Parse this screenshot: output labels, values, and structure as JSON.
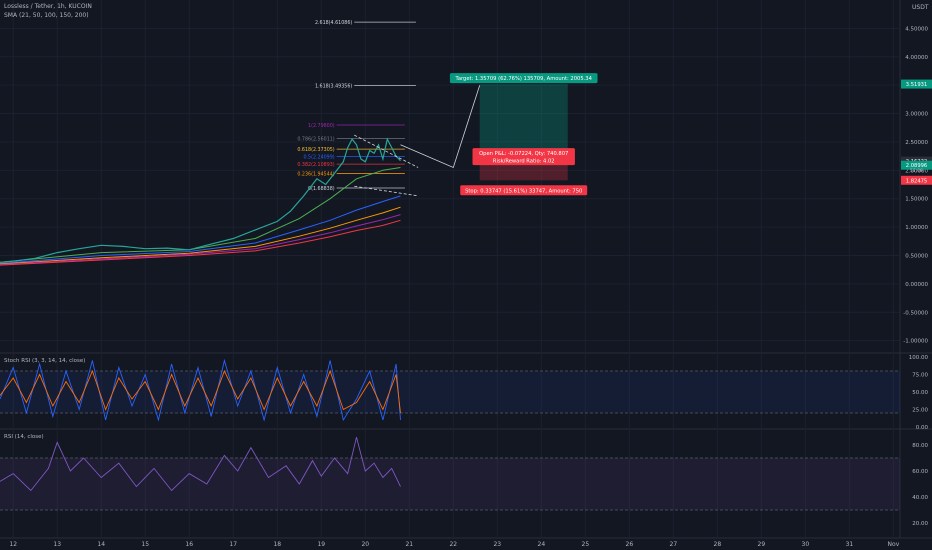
{
  "header": {
    "symbol": "Lossless / Tether, 1h, KUCOIN",
    "indicator": "SMA (21, 50, 100, 150, 200)",
    "currency": "USDT"
  },
  "chart_data": {
    "type": "line",
    "price_axis": {
      "ylim": [
        -1.2,
        5.0
      ],
      "ticks": [
        "-1.00000",
        "-0.50000",
        "0.00000",
        "0.50000",
        "1.00000",
        "1.50000",
        "2.00000",
        "2.50000",
        "3.00000",
        "3.50000",
        "4.00000",
        "4.50000"
      ],
      "tick_values": [
        -1.0,
        -0.5,
        0.0,
        0.5,
        1.0,
        1.5,
        2.0,
        2.5,
        3.0,
        3.5,
        4.0,
        4.5
      ]
    },
    "x_axis": {
      "ticks": [
        "12",
        "13",
        "14",
        "15",
        "16",
        "17",
        "18",
        "19",
        "20",
        "21",
        "22",
        "23",
        "24",
        "25",
        "26",
        "27",
        "28",
        "29",
        "30",
        "31",
        "Nov"
      ],
      "tick_values": [
        12,
        13,
        14,
        15,
        16,
        17,
        18,
        19,
        20,
        21,
        22,
        23,
        24,
        25,
        26,
        27,
        28,
        29,
        30,
        31,
        32
      ]
    },
    "price_series": {
      "x": [
        11.7,
        12.0,
        12.5,
        13.0,
        13.5,
        14.0,
        14.5,
        15.0,
        15.5,
        16.0,
        16.5,
        17.0,
        17.5,
        18.0,
        18.3,
        18.6,
        18.9,
        19.1,
        19.3,
        19.5,
        19.6,
        19.7,
        19.8,
        19.9,
        20.0,
        20.1,
        20.2,
        20.3,
        20.4,
        20.5,
        20.6,
        20.7,
        20.8
      ],
      "values": [
        0.38,
        0.4,
        0.45,
        0.55,
        0.62,
        0.68,
        0.66,
        0.62,
        0.63,
        0.6,
        0.7,
        0.8,
        0.95,
        1.1,
        1.28,
        1.55,
        1.85,
        1.75,
        1.95,
        2.15,
        2.4,
        2.55,
        2.45,
        2.2,
        2.15,
        2.35,
        2.3,
        2.45,
        2.2,
        2.55,
        2.4,
        2.25,
        2.17
      ]
    },
    "sma_series": [
      {
        "color": "#4caf50",
        "x": [
          11.7,
          14,
          16,
          17.5,
          18.5,
          19.2,
          19.8,
          20.4,
          20.8
        ],
        "values": [
          0.38,
          0.55,
          0.6,
          0.8,
          1.15,
          1.5,
          1.85,
          2.0,
          2.05
        ]
      },
      {
        "color": "#2962ff",
        "x": [
          11.7,
          14,
          16,
          17.5,
          18.5,
          19.2,
          19.8,
          20.4,
          20.8
        ],
        "values": [
          0.36,
          0.5,
          0.57,
          0.72,
          0.95,
          1.12,
          1.3,
          1.45,
          1.55
        ]
      },
      {
        "color": "#ff9800",
        "x": [
          11.7,
          14,
          16,
          17.5,
          18.5,
          19.2,
          19.8,
          20.4,
          20.8
        ],
        "values": [
          0.35,
          0.46,
          0.54,
          0.66,
          0.84,
          0.98,
          1.12,
          1.25,
          1.35
        ]
      },
      {
        "color": "#9c27b0",
        "x": [
          11.7,
          14,
          16,
          17.5,
          18.5,
          19.2,
          19.8,
          20.4,
          20.8
        ],
        "values": [
          0.34,
          0.44,
          0.52,
          0.62,
          0.78,
          0.9,
          1.02,
          1.13,
          1.22
        ]
      },
      {
        "color": "#f23645",
        "x": [
          11.7,
          14,
          16,
          17.5,
          18.5,
          19.2,
          19.8,
          20.4,
          20.8
        ],
        "values": [
          0.33,
          0.42,
          0.5,
          0.58,
          0.72,
          0.83,
          0.94,
          1.03,
          1.12
        ]
      }
    ],
    "fib_levels": [
      {
        "label": "2.618(4.61086)",
        "value": 4.61086,
        "color": "#d1d4dc"
      },
      {
        "label": "1.618(3.49356)",
        "value": 3.49356,
        "color": "#d1d4dc"
      },
      {
        "label": "1(2.79800)",
        "value": 2.798,
        "color": "#9c27b0"
      },
      {
        "label": "0.786(2.56011)",
        "value": 2.56011,
        "color": "#787b86"
      },
      {
        "label": "0.618(2.37305)",
        "value": 2.37305,
        "color": "#fbc02d"
      },
      {
        "label": "0.5(2.24099)",
        "value": 2.24099,
        "color": "#2962ff"
      },
      {
        "label": "0.382(2.10893)",
        "value": 2.10893,
        "color": "#f23645"
      },
      {
        "label": "0.236(1.94544)",
        "value": 1.94544,
        "color": "#ff9800"
      },
      {
        "label": "0(1.68838)",
        "value": 1.68838,
        "color": "#d1d4dc"
      }
    ],
    "position": {
      "target_label": "Target: 1.35709 (62.76%) 135709, Amount: 2005.34",
      "pnl_label": "Open P&L: -0.07224, Qty: 740.807",
      "rr_label": "Risk/Reward Ratio: 4.02",
      "stop_label": "Stop: 0.33747 (15.61%) 33747, Amount: 750",
      "entry": 2.162,
      "target": 3.51931,
      "stop": 1.82475,
      "x_start": 22.6,
      "x_end": 24.6
    },
    "price_badges": [
      {
        "label": "3.51931",
        "value": 3.51931,
        "color": "#089981"
      },
      {
        "label": "2.16222",
        "value": 2.16222,
        "color": "#2a2e39"
      },
      {
        "label": "2.08996",
        "value": 2.08996,
        "color": "#089981"
      },
      {
        "label": "1.82475",
        "value": 1.82475,
        "color": "#f23645"
      }
    ],
    "badge_sub": "57:09",
    "stoch_rsi": {
      "label": "Stoch RSI (3, 3, 14, 14, close)",
      "ylim": [
        0,
        100
      ],
      "ticks": [
        "100.00",
        "75.00",
        "50.00",
        "25.00",
        "0.00"
      ],
      "tick_values": [
        100,
        75,
        50,
        25,
        0
      ],
      "bands": [
        80,
        20
      ],
      "k": {
        "x": [
          11.7,
          12.0,
          12.3,
          12.6,
          12.9,
          13.2,
          13.5,
          13.8,
          14.1,
          14.4,
          14.7,
          15.0,
          15.3,
          15.6,
          15.9,
          16.2,
          16.5,
          16.8,
          17.1,
          17.4,
          17.7,
          18.0,
          18.3,
          18.6,
          18.9,
          19.2,
          19.5,
          19.8,
          20.1,
          20.4,
          20.7,
          20.8
        ],
        "values": [
          40,
          85,
          20,
          90,
          15,
          80,
          25,
          95,
          10,
          85,
          30,
          75,
          10,
          90,
          20,
          85,
          15,
          95,
          30,
          80,
          10,
          85,
          20,
          75,
          15,
          95,
          10,
          40,
          80,
          10,
          90,
          10
        ]
      },
      "d": {
        "x": [
          11.7,
          12.0,
          12.3,
          12.6,
          12.9,
          13.2,
          13.5,
          13.8,
          14.1,
          14.4,
          14.7,
          15.0,
          15.3,
          15.6,
          15.9,
          16.2,
          16.5,
          16.8,
          17.1,
          17.4,
          17.7,
          18.0,
          18.3,
          18.6,
          18.9,
          19.2,
          19.5,
          19.8,
          20.1,
          20.4,
          20.7,
          20.8
        ],
        "values": [
          45,
          70,
          35,
          75,
          30,
          65,
          35,
          80,
          25,
          70,
          40,
          65,
          25,
          75,
          30,
          70,
          30,
          80,
          40,
          70,
          25,
          70,
          30,
          65,
          30,
          80,
          25,
          35,
          65,
          25,
          75,
          20
        ]
      }
    },
    "rsi": {
      "label": "RSI (14, close)",
      "ylim": [
        10,
        90
      ],
      "ticks": [
        "80.00",
        "60.00",
        "40.00",
        "20.00"
      ],
      "tick_values": [
        80,
        60,
        40,
        20
      ],
      "bands": [
        70,
        30
      ],
      "line": {
        "x": [
          11.7,
          12.0,
          12.4,
          12.8,
          13.0,
          13.3,
          13.6,
          14.0,
          14.4,
          14.8,
          15.2,
          15.6,
          16.0,
          16.4,
          16.8,
          17.1,
          17.4,
          17.8,
          18.2,
          18.5,
          18.8,
          19.0,
          19.3,
          19.6,
          19.8,
          20.0,
          20.2,
          20.4,
          20.6,
          20.8
        ],
        "values": [
          52,
          58,
          45,
          62,
          82,
          60,
          70,
          55,
          66,
          48,
          62,
          45,
          58,
          50,
          72,
          60,
          78,
          55,
          64,
          50,
          68,
          56,
          70,
          58,
          86,
          60,
          66,
          55,
          62,
          48
        ]
      }
    }
  }
}
